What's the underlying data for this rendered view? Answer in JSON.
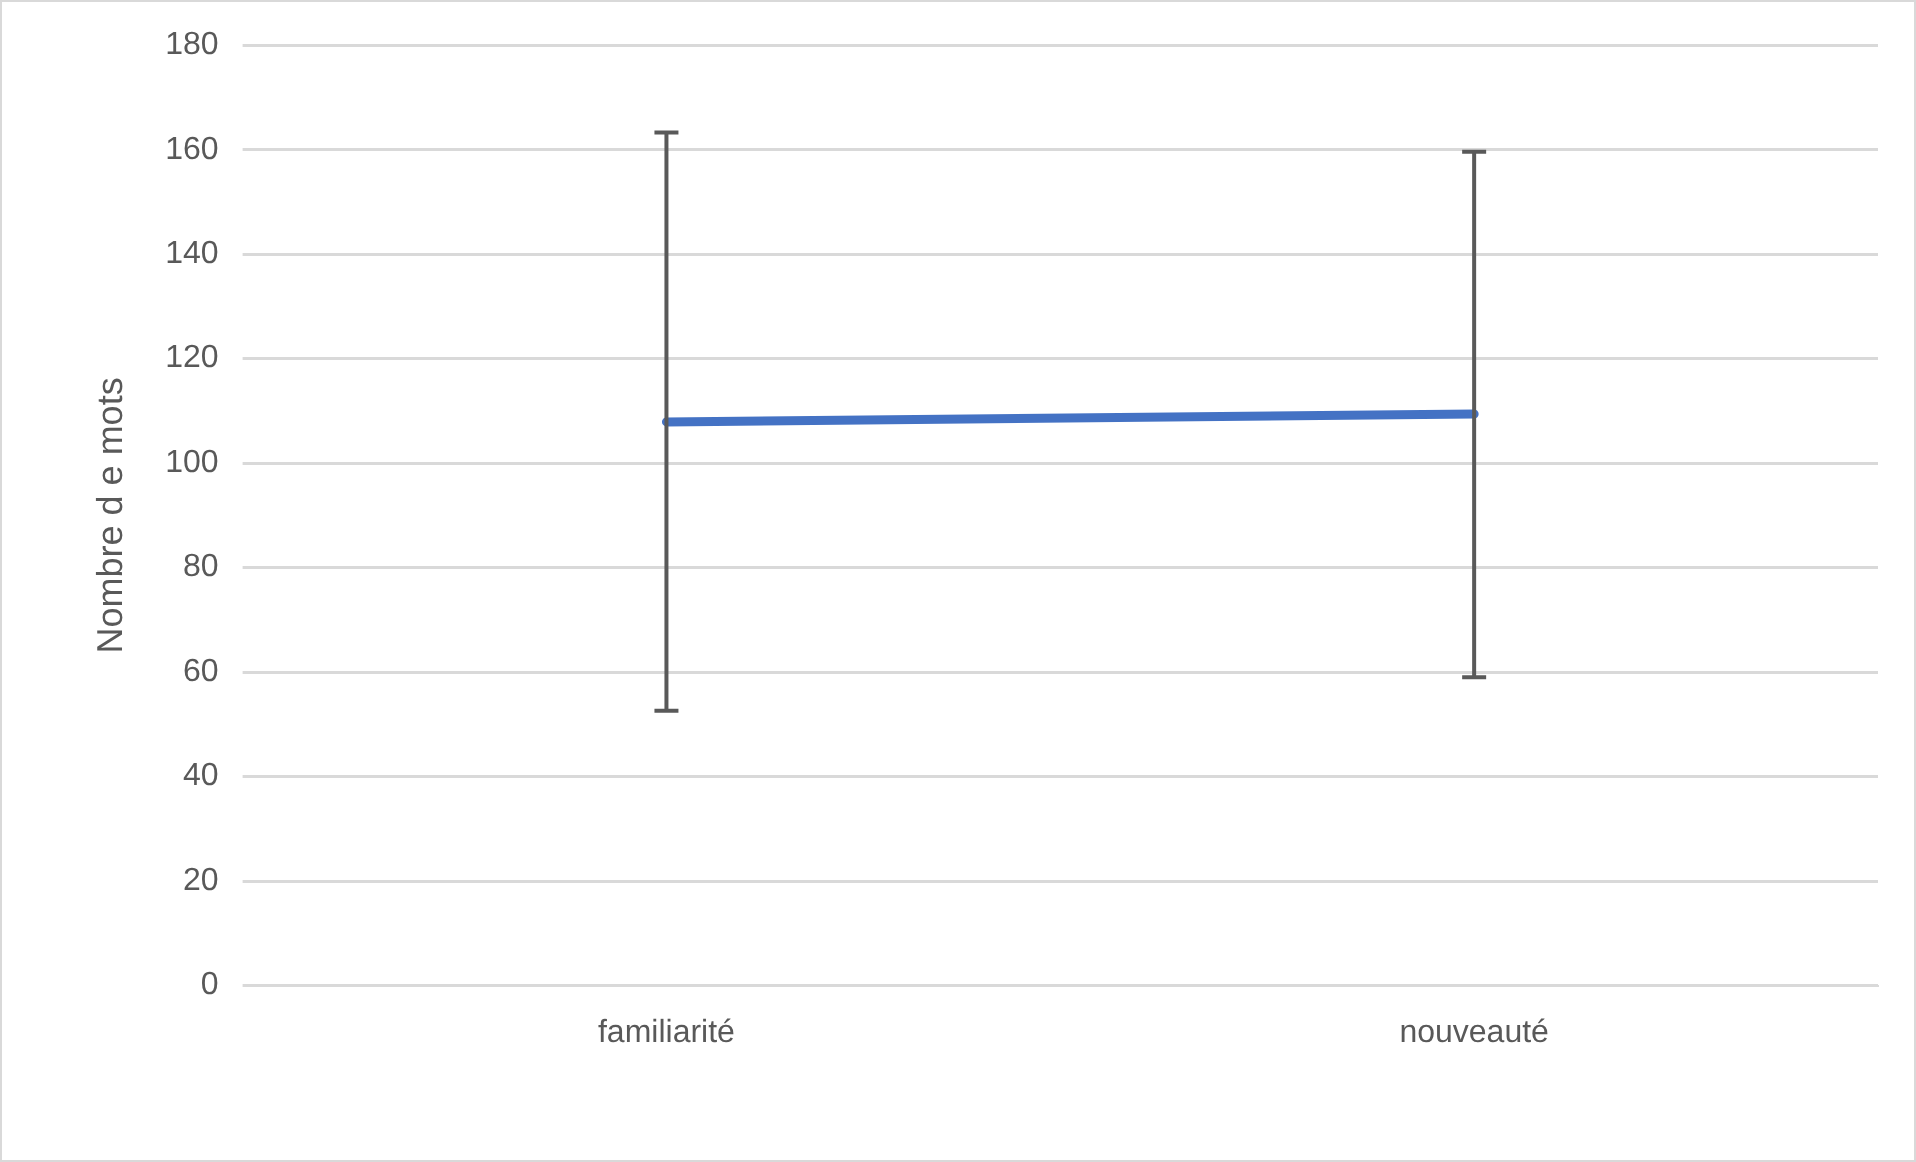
{
  "chart_data": {
    "type": "line",
    "ylabel": "Nombre d e mots",
    "categories": [
      "familiarité",
      "nouveauté"
    ],
    "series": [
      {
        "color": "#4472c4",
        "values": [
          107.9,
          109.4
        ],
        "errors": [
          [
            52.6,
            163.3
          ],
          [
            59,
            159.6
          ]
        ]
      }
    ],
    "ylim": [
      0,
      180
    ],
    "yticks": [
      0,
      20,
      40,
      60,
      80,
      100,
      120,
      140,
      160,
      180
    ],
    "grid": "y",
    "legend": false,
    "marker": "none"
  }
}
